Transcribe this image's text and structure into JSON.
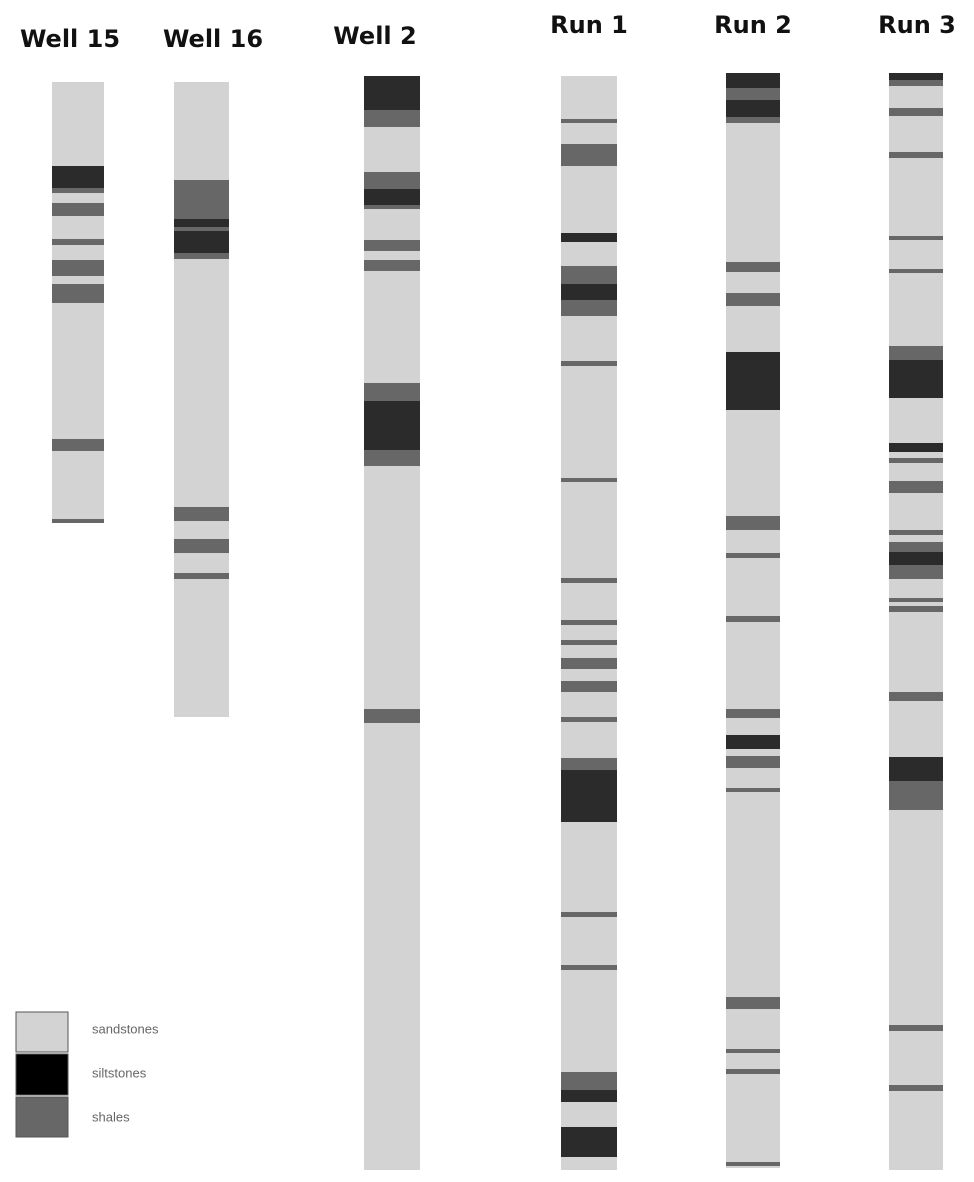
{
  "columns": [
    {
      "title": "Well 15"
    },
    {
      "title": "Well 16"
    },
    {
      "title": "Well 2"
    },
    {
      "title": "Run 1"
    },
    {
      "title": "Run 2"
    },
    {
      "title": "Run 3"
    }
  ],
  "legend": [
    {
      "label": "sandstones"
    },
    {
      "label": "siltstones"
    },
    {
      "label": "shales"
    }
  ]
}
